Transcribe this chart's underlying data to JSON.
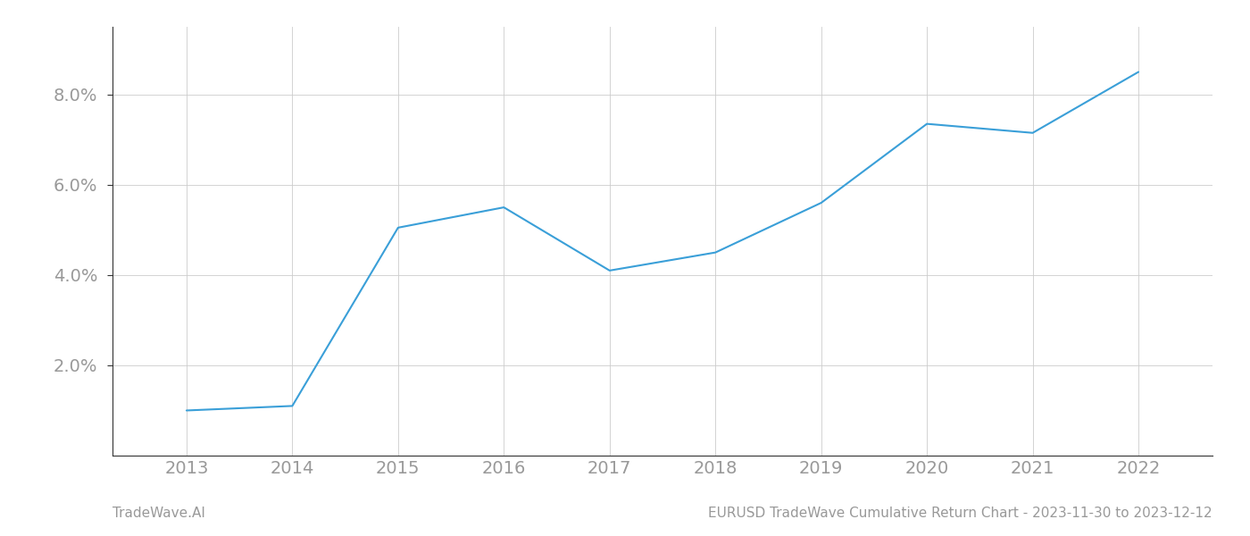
{
  "x": [
    2013,
    2014,
    2015,
    2016,
    2017,
    2018,
    2019,
    2020,
    2021,
    2022
  ],
  "y": [
    1.0,
    1.1,
    5.05,
    5.5,
    4.1,
    4.5,
    5.6,
    7.35,
    7.15,
    8.5
  ],
  "line_color": "#3a9fd8",
  "line_width": 1.5,
  "bg_color": "#ffffff",
  "grid_color": "#cccccc",
  "ytick_labels": [
    "2.0%",
    "4.0%",
    "6.0%",
    "8.0%"
  ],
  "ytick_values": [
    2.0,
    4.0,
    6.0,
    8.0
  ],
  "xtick_labels": [
    "2013",
    "2014",
    "2015",
    "2016",
    "2017",
    "2018",
    "2019",
    "2020",
    "2021",
    "2022"
  ],
  "xtick_values": [
    2013,
    2014,
    2015,
    2016,
    2017,
    2018,
    2019,
    2020,
    2021,
    2022
  ],
  "xlim": [
    2012.3,
    2022.7
  ],
  "ylim": [
    0.0,
    9.5
  ],
  "footer_left": "TradeWave.AI",
  "footer_right": "EURUSD TradeWave Cumulative Return Chart - 2023-11-30 to 2023-12-12",
  "footer_color": "#999999",
  "footer_fontsize": 11,
  "tick_color": "#999999",
  "tick_fontsize": 14,
  "spine_color": "#333333",
  "grid_linewidth": 0.6
}
